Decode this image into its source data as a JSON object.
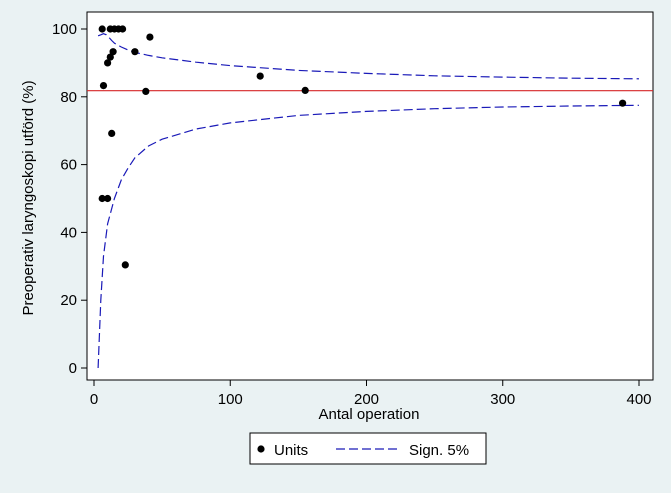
{
  "chart_data": {
    "type": "scatter",
    "title": "",
    "xlabel": "Antal operation",
    "ylabel": "Preoperativ laryngoskopi utförd (%)",
    "xlim": [
      0,
      410
    ],
    "ylim": [
      0,
      100
    ],
    "xticks": [
      0,
      100,
      200,
      300,
      400
    ],
    "yticks": [
      0,
      20,
      40,
      60,
      80,
      100
    ],
    "grid": false,
    "legend_position": "bottom-center",
    "reference_line": {
      "y": 81.8,
      "color": "#d62728"
    },
    "series": [
      {
        "name": "Units",
        "kind": "scatter",
        "marker": "filled-circle",
        "color": "#000000",
        "points": [
          [
            6,
            100
          ],
          [
            12,
            100
          ],
          [
            15,
            100
          ],
          [
            18,
            100
          ],
          [
            21,
            100
          ],
          [
            10,
            90
          ],
          [
            12,
            91.7
          ],
          [
            14,
            93.3
          ],
          [
            30,
            93.3
          ],
          [
            41,
            97.6
          ],
          [
            7,
            83.3
          ],
          [
            38,
            81.6
          ],
          [
            122,
            86.1
          ],
          [
            155,
            81.9
          ],
          [
            388,
            78.1
          ],
          [
            13,
            69.2
          ],
          [
            6,
            50
          ],
          [
            10,
            50
          ],
          [
            23,
            30.4
          ]
        ]
      },
      {
        "name": "Sign. 5%",
        "kind": "line",
        "style": "dashed",
        "color": "#1a1ab8",
        "upper": [
          [
            3,
            98
          ],
          [
            5,
            98.3
          ],
          [
            7,
            98.6
          ],
          [
            9,
            98.3
          ],
          [
            11,
            97.5
          ],
          [
            13,
            96.6
          ],
          [
            15,
            95.8
          ],
          [
            20,
            94.7
          ],
          [
            25,
            93.8
          ],
          [
            30,
            93.1
          ],
          [
            40,
            92.2
          ],
          [
            50,
            91.5
          ],
          [
            75,
            90.2
          ],
          [
            100,
            89.2
          ],
          [
            150,
            87.8
          ],
          [
            200,
            86.9
          ],
          [
            250,
            86.2
          ],
          [
            300,
            85.8
          ],
          [
            350,
            85.5
          ],
          [
            400,
            85.3
          ]
        ],
        "lower": [
          [
            3,
            0
          ],
          [
            5,
            20
          ],
          [
            7,
            33
          ],
          [
            10,
            42.5
          ],
          [
            15,
            50
          ],
          [
            20,
            55.5
          ],
          [
            25,
            59
          ],
          [
            30,
            62
          ],
          [
            40,
            65.5
          ],
          [
            50,
            67.5
          ],
          [
            75,
            70.5
          ],
          [
            100,
            72.3
          ],
          [
            150,
            74.5
          ],
          [
            200,
            75.7
          ],
          [
            250,
            76.5
          ],
          [
            300,
            77
          ],
          [
            350,
            77.3
          ],
          [
            400,
            77.5
          ]
        ]
      }
    ]
  }
}
